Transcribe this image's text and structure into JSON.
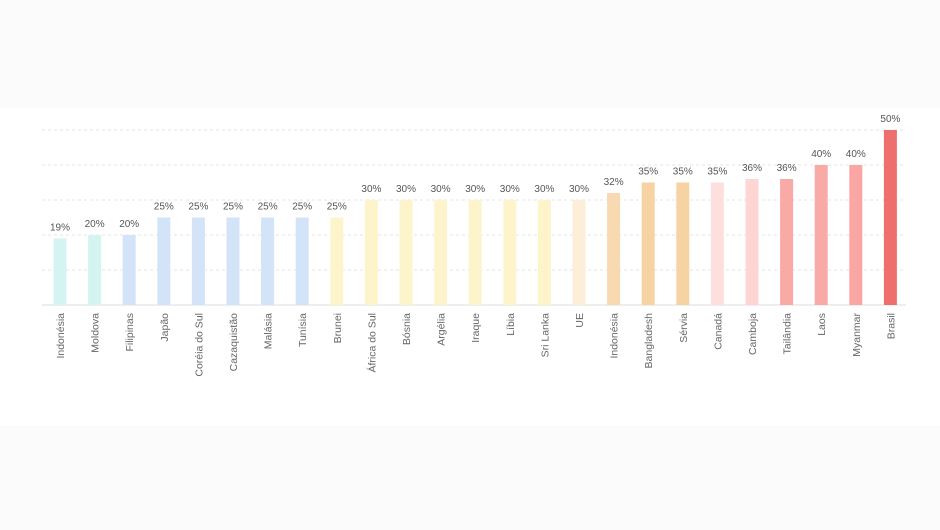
{
  "chart_data": {
    "type": "bar",
    "title": "",
    "xlabel": "",
    "ylabel": "",
    "ylim": [
      0,
      50
    ],
    "grid": true,
    "legend": "none",
    "categories": [
      "Indonésia",
      "Moldova",
      "Filipinas",
      "Japão",
      "Coréia do Sul",
      "Cazaquistão",
      "Malásia",
      "Tunísia",
      "Brunei",
      "África do Sul",
      "Bósnia",
      "Argélia",
      "Iraque",
      "Líbia",
      "Sri Lanka",
      "UE",
      "Indonésia",
      "Bangladesh",
      "Sérvia",
      "Canadá",
      "Camboja",
      "Tailândia",
      "Laos",
      "Myanmar",
      "Brasil"
    ],
    "values": [
      19,
      20,
      20,
      25,
      25,
      25,
      25,
      25,
      25,
      30,
      30,
      30,
      30,
      30,
      30,
      30,
      32,
      35,
      35,
      35,
      36,
      36,
      40,
      40,
      50
    ],
    "value_labels": [
      "19%",
      "20%",
      "20%",
      "25%",
      "25%",
      "25%",
      "25%",
      "25%",
      "25%",
      "30%",
      "30%",
      "30%",
      "30%",
      "30%",
      "30%",
      "30%",
      "32%",
      "35%",
      "35%",
      "35%",
      "36%",
      "36%",
      "40%",
      "40%",
      "50%"
    ],
    "colors": [
      "#d4f4f1",
      "#d4f4f1",
      "#d3e4f8",
      "#d3e4f8",
      "#d3e4f8",
      "#d3e4f8",
      "#d3e4f8",
      "#d3e4f8",
      "#fdf4cc",
      "#fdf4cc",
      "#fdf4cc",
      "#fdf4cc",
      "#fdf4cc",
      "#fdf4cc",
      "#fdf4cc",
      "#fdeed9",
      "#f8d9b2",
      "#f7d2a3",
      "#f7d2a3",
      "#fde0de",
      "#fdd6d4",
      "#f9aaa7",
      "#f9aaa7",
      "#f9a6a4",
      "#ef6f6c"
    ]
  }
}
